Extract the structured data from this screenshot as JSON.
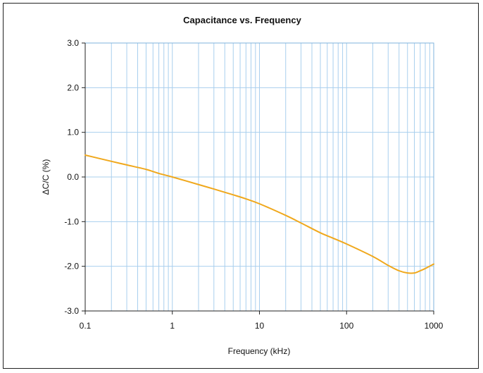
{
  "chart_data": {
    "type": "line",
    "title": "Capacitance vs. Frequency",
    "xlabel": "Frequency (kHz)",
    "ylabel": "ΔC/C (%)",
    "xscale": "log",
    "xlim": [
      0.1,
      1000
    ],
    "ylim": [
      -3.0,
      3.0
    ],
    "x_ticks": [
      0.1,
      1,
      10,
      100,
      1000
    ],
    "x_tick_labels": [
      "0.1",
      "1",
      "10",
      "100",
      "1000"
    ],
    "y_ticks": [
      -3.0,
      -2.0,
      -1.0,
      0.0,
      1.0,
      2.0,
      3.0
    ],
    "y_tick_labels": [
      "-3.0",
      "-2.0",
      "-1.0",
      "0.0",
      "1.0",
      "2.0",
      "3.0"
    ],
    "grid": true,
    "series": [
      {
        "color": "#f0a81c",
        "x": [
          0.1,
          0.2,
          0.3,
          0.5,
          0.7,
          1,
          2,
          3,
          5,
          7,
          10,
          20,
          30,
          50,
          70,
          100,
          200,
          300,
          400,
          500,
          600,
          700,
          800,
          1000
        ],
        "y": [
          0.49,
          0.35,
          0.27,
          0.17,
          0.08,
          0.0,
          -0.17,
          -0.27,
          -0.4,
          -0.49,
          -0.6,
          -0.86,
          -1.03,
          -1.25,
          -1.37,
          -1.5,
          -1.78,
          -1.98,
          -2.1,
          -2.15,
          -2.15,
          -2.1,
          -2.05,
          -1.95
        ]
      }
    ]
  }
}
